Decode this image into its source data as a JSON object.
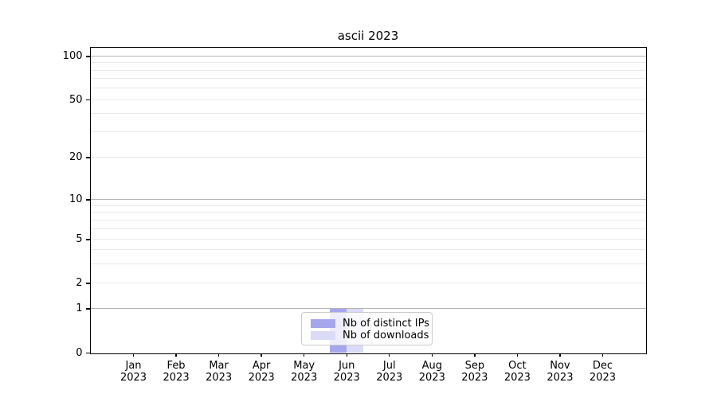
{
  "figure": {
    "title": "ascii 2023"
  },
  "legend": {
    "items": [
      {
        "label": "Nb of distinct IPs",
        "color": "#a6a6ed"
      },
      {
        "label": "Nb of downloads",
        "color": "#dbdbf7"
      }
    ],
    "position": "lower center"
  },
  "chart_data": {
    "type": "bar",
    "title": "ascii 2023",
    "categories": [
      "Jan 2023",
      "Feb 2023",
      "Mar 2023",
      "Apr 2023",
      "May 2023",
      "Jun 2023",
      "Jul 2023",
      "Aug 2023",
      "Sep 2023",
      "Oct 2023",
      "Nov 2023",
      "Dec 2023"
    ],
    "series": [
      {
        "name": "Nb of distinct IPs",
        "color": "#a6a6ed",
        "values": [
          0,
          0,
          0,
          0,
          0,
          1,
          0,
          0,
          0,
          0,
          0,
          0
        ]
      },
      {
        "name": "Nb of downloads",
        "color": "#dbdbf7",
        "values": [
          0,
          0,
          0,
          0,
          0,
          1,
          0,
          0,
          0,
          0,
          0,
          0
        ]
      }
    ],
    "xlabel": "",
    "ylabel": "",
    "yscale": "symlog",
    "ylim": [
      0,
      112
    ],
    "y_ticks": [
      0,
      1,
      2,
      5,
      10,
      20,
      50,
      100
    ],
    "y_major_gridlines": [
      1,
      10,
      100
    ],
    "y_minor_gridlines": [
      3,
      4,
      6,
      7,
      8,
      9,
      30,
      40,
      60,
      70,
      80,
      90
    ],
    "grid": "horizontal",
    "legend_position": "lower center"
  }
}
